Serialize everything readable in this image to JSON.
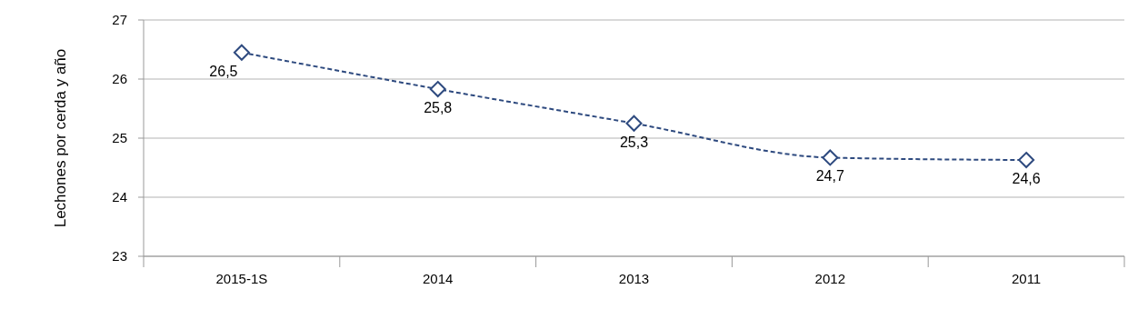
{
  "chart_data": {
    "type": "line",
    "ylabel": "Lechones por cerda y año",
    "categories": [
      "2015-1S",
      "2014",
      "2013",
      "2012",
      "2011"
    ],
    "series": [
      {
        "color": "#2e4a7f",
        "values": [
          26.45,
          25.83,
          25.25,
          24.67,
          24.63
        ],
        "value_labels": [
          "26,5",
          "25,8",
          "25,3",
          "24,7",
          "24,6"
        ]
      }
    ],
    "ylim": [
      23,
      27
    ],
    "yticks": [
      23,
      24,
      25,
      26,
      27
    ],
    "grid": "y",
    "marker": "diamond",
    "line_style": "dashed"
  }
}
